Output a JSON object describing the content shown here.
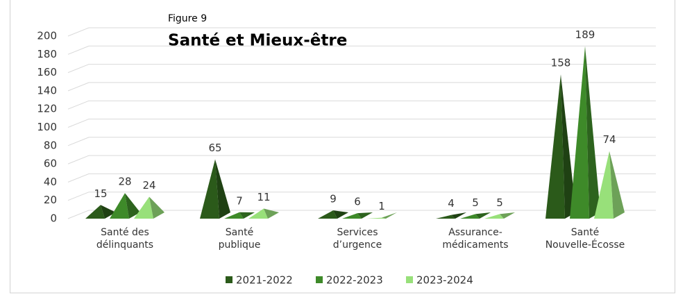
{
  "chart_data": {
    "type": "bar3d-pyramid",
    "subtitle": "Figure 9",
    "title": "Santé et Mieux-être",
    "categories": [
      "Santé des\ndélinquants",
      "Santé\npublique",
      "Services\nd’urgence",
      "Assurance-\nmédicaments",
      "Santé\nNouvelle-Écosse"
    ],
    "series": [
      {
        "name": "2021-2022",
        "color": "#2b5a1a",
        "values": [
          15,
          65,
          9,
          4,
          158
        ]
      },
      {
        "name": "2022-2023",
        "color": "#3e8a29",
        "values": [
          28,
          7,
          6,
          5,
          189
        ]
      },
      {
        "name": "2023-2024",
        "color": "#98e07a",
        "values": [
          24,
          11,
          1,
          5,
          74
        ]
      }
    ],
    "ylim": [
      0,
      200
    ],
    "yticks": [
      0,
      20,
      40,
      60,
      80,
      100,
      120,
      140,
      160,
      180,
      200
    ],
    "grid": true,
    "legend": "bottom"
  }
}
